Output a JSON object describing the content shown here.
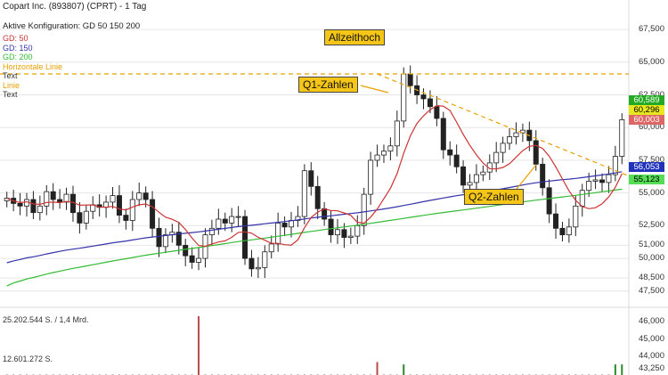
{
  "header": {
    "title": "Copart Inc. (893807) (CPRT) - 1 Tag",
    "config": "Aktive Konfiguration: GD 50 150 200"
  },
  "legend": [
    {
      "label": "GD: 50",
      "color": "#cc3333"
    },
    {
      "label": "GD: 150",
      "color": "#3333aa"
    },
    {
      "label": "GD: 200",
      "color": "#33bb33"
    },
    {
      "label": "Horizontale Linie",
      "color": "#e8a000"
    },
    {
      "label": "Text",
      "color": "#333333"
    },
    {
      "label": "Linie",
      "color": "#e8a000"
    },
    {
      "label": "Text",
      "color": "#333333"
    }
  ],
  "annotations": {
    "allzeithoch": "Allzeithoch",
    "q1": "Q1-Zahlen",
    "q2": "Q2-Zahlen"
  },
  "price_tags": [
    {
      "value": "60,589",
      "bg": "#22aa22",
      "fg": "#ffffff"
    },
    {
      "value": "60,296",
      "bg": "#e8e820",
      "fg": "#000000"
    },
    {
      "value": "60,003",
      "bg": "#dd6666",
      "fg": "#ffffff"
    },
    {
      "value": "56,053",
      "bg": "#2233bb",
      "fg": "#ffffff"
    },
    {
      "value": "55,123",
      "bg": "#55dd55",
      "fg": "#000000"
    }
  ],
  "volume_labels": [
    "25.202.544 S. / 1,4 Mrd.",
    "12.601.272 S."
  ],
  "chart_data": {
    "type": "candlestick",
    "title": "Copart Inc. (893807) (CPRT) - 1 Tag",
    "y_axis": {
      "labels": [
        "67,500",
        "65,000",
        "62,500",
        "60,000",
        "57,500",
        "55,000",
        "52,500",
        "51,000",
        "50,000",
        "48,500",
        "47,500"
      ],
      "values": [
        67.5,
        65.0,
        62.5,
        60.0,
        57.5,
        55.0,
        52.5,
        51.0,
        50.0,
        48.5,
        47.5
      ]
    },
    "volume_axis": {
      "labels": [
        "46,000",
        "45,000",
        "44,000",
        "43,250"
      ]
    },
    "horizontal_line": {
      "name": "Horizontale Linie",
      "value": 64.1
    },
    "trend_line": {
      "name": "Linie",
      "from": [
        0.6,
        64.1
      ],
      "to": [
        1.0,
        56.3
      ]
    },
    "close_series": [
      54.6,
      54.2,
      54.0,
      54.5,
      53.5,
      54.0,
      55.1,
      54.5,
      54.3,
      54.9,
      53.5,
      52.7,
      53.6,
      54.1,
      53.9,
      54.3,
      54.8,
      53.3,
      52.9,
      54.5,
      55.0,
      54.5,
      52.3,
      50.9,
      51.8,
      52.0,
      51.0,
      50.2,
      49.7,
      50.0,
      51.8,
      52.3,
      53.0,
      52.7,
      53.2,
      53.2,
      50.0,
      49.2,
      49.3,
      50.5,
      51.1,
      52.7,
      52.4,
      52.9,
      53.2,
      56.7,
      55.5,
      53.8,
      53.0,
      51.8,
      52.2,
      51.6,
      51.7,
      52.5,
      54.9,
      57.5,
      57.9,
      58.2,
      58.6,
      60.5,
      64.1,
      63.2,
      62.5,
      62.2,
      61.6,
      60.7,
      58.3,
      57.9,
      57.0,
      55.6,
      55.8,
      56.4,
      56.6,
      57.3,
      58.1,
      58.8,
      59.3,
      59.6,
      59.8,
      59.0,
      57.2,
      55.4,
      53.4,
      52.3,
      51.8,
      52.4,
      54.0,
      55.2,
      55.9,
      56.0,
      55.8,
      56.4,
      57.8,
      60.6
    ],
    "series": [
      {
        "name": "GD: 50",
        "color": "#cc3333"
      },
      {
        "name": "GD: 150",
        "color": "#3333aa"
      },
      {
        "name": "GD: 200",
        "color": "#33bb33"
      }
    ],
    "volume": [
      0.1,
      0.1,
      0.1,
      0.1,
      0.1,
      0.1,
      0.1,
      0.1,
      0.1,
      0.1,
      0.1,
      0.1,
      0.1,
      0.1,
      0.1,
      0.1,
      0.1,
      0.1,
      0.1,
      0.1,
      0.1,
      0.1,
      0.1,
      0.1,
      0.1,
      0.1,
      0.1,
      0.1,
      0.1,
      0.1,
      0.1,
      0.1,
      0.1,
      0.1,
      0.1,
      0.1,
      0.1,
      0.1,
      0.1,
      0.1,
      0.1,
      0.1,
      0.1,
      0.1,
      0.1,
      0.1,
      0.1,
      0.1,
      0.1,
      0.1,
      0.1,
      0.1,
      0.1,
      0.1,
      0.1,
      0.1,
      0.1,
      0.1,
      0.1,
      0.1,
      0.2,
      0.1,
      0.1,
      0.1,
      0.1,
      0.1,
      0.1,
      0.1,
      0.1,
      0.1,
      0.1,
      0.1,
      0.1,
      0.1,
      0.1,
      0.1,
      0.1,
      0.1,
      0.1,
      0.1,
      0.1,
      0.1,
      0.1,
      0.1,
      0.1,
      0.1,
      0.1,
      0.1,
      0.1,
      0.1,
      0.1,
      0.1,
      0.2,
      0.2
    ]
  }
}
